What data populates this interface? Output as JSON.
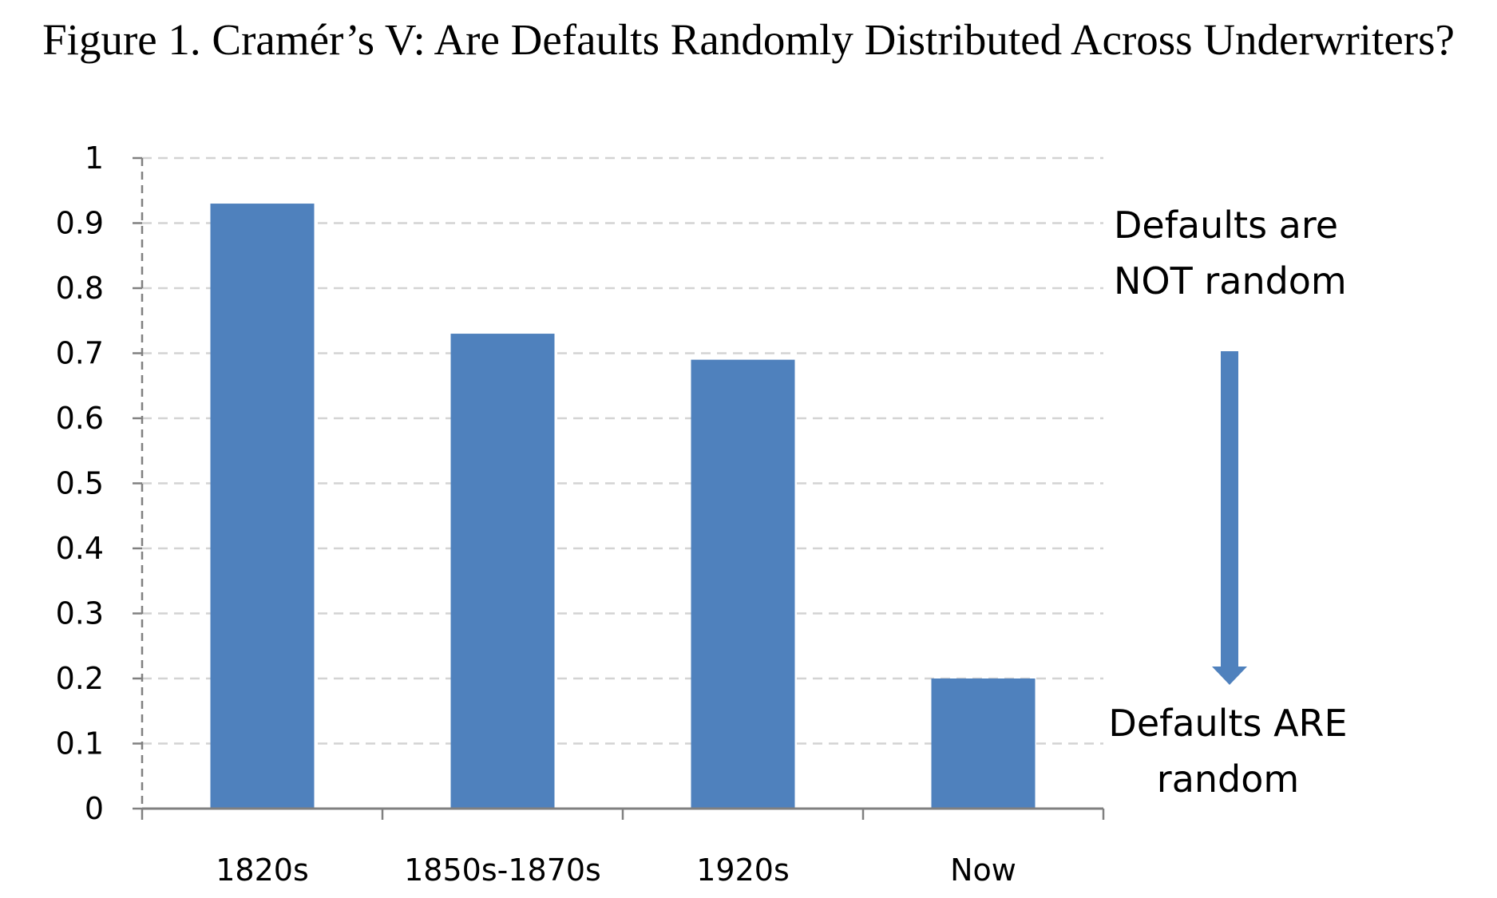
{
  "chart_data": {
    "type": "bar",
    "title": "Figure 1. Cramér’s V: Are Defaults Randomly Distributed Across Underwriters?",
    "xlabel": "",
    "ylabel": "",
    "categories": [
      "1820s",
      "1850s-1870s",
      "1920s",
      "Now"
    ],
    "values": [
      0.93,
      0.73,
      0.69,
      0.2
    ],
    "ylim": [
      0,
      1
    ],
    "yticks": [
      "0",
      "0.1",
      "0.2",
      "0.3",
      "0.4",
      "0.5",
      "0.6",
      "0.7",
      "0.8",
      "0.9",
      "1"
    ],
    "grid": true,
    "legend": "none",
    "bar_color": "#4f81bd",
    "annotations": {
      "top": [
        "Defaults are",
        "NOT random"
      ],
      "bottom": [
        "Defaults ARE",
        "random"
      ],
      "arrow_color": "#4f81bd"
    }
  }
}
